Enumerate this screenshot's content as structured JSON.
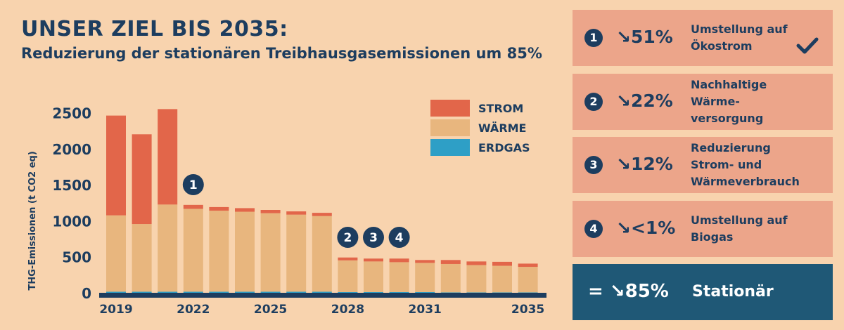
{
  "header": {
    "title": "UNSER ZIEL BIS 2035:",
    "subtitle": "Reduzierung der stationären Treibhausgasemissionen um 85%"
  },
  "colors": {
    "strom": "#e2664a",
    "waerme": "#e8b67e",
    "erdgas": "#2e9fc6",
    "navy": "#1d3d5f"
  },
  "chart_data": {
    "type": "bar",
    "stacked": true,
    "categories": [
      "2019",
      "2020",
      "2021",
      "2022",
      "2023",
      "2024",
      "2025",
      "2026",
      "2027",
      "2028",
      "2029",
      "2030",
      "2031",
      "2032",
      "2033",
      "2034",
      "2035"
    ],
    "x_tick_labels": [
      "2019",
      "2022",
      "2025",
      "2028",
      "2031",
      "2035"
    ],
    "ylabel": "THG-Emissionen (t CO2 eq)",
    "y_ticks": [
      0,
      500,
      1000,
      1500,
      2000,
      2500
    ],
    "ylim": [
      0,
      2650
    ],
    "legend_position": "top-right",
    "series": [
      {
        "name": "ERDGAS",
        "values": [
          15,
          15,
          15,
          15,
          15,
          15,
          15,
          15,
          15,
          10,
          10,
          10,
          10,
          5,
          5,
          5,
          5
        ]
      },
      {
        "name": "WÄRME",
        "values": [
          1060,
          940,
          1210,
          1150,
          1125,
          1110,
          1090,
          1070,
          1050,
          440,
          425,
          415,
          405,
          395,
          380,
          370,
          355
        ]
      },
      {
        "name": "STROM",
        "values": [
          1385,
          1245,
          1325,
          55,
          50,
          50,
          45,
          45,
          45,
          40,
          40,
          50,
          40,
          55,
          50,
          55,
          45
        ]
      }
    ],
    "markers": [
      {
        "label": "1",
        "category": "2022"
      },
      {
        "label": "2",
        "category": "2028"
      },
      {
        "label": "3",
        "category": "2029"
      },
      {
        "label": "4",
        "category": "2030"
      }
    ]
  },
  "measures": [
    {
      "num": "1",
      "pct": "↘51%",
      "lines": [
        "Umstellung auf",
        "Ökostrom"
      ],
      "done": true
    },
    {
      "num": "2",
      "pct": "↘22%",
      "lines": [
        "Nachhaltige",
        "Wärme-",
        "versorgung"
      ],
      "done": false
    },
    {
      "num": "3",
      "pct": "↘12%",
      "lines": [
        "Reduzierung",
        "Strom- und",
        "Wärmeverbrauch"
      ],
      "done": false
    },
    {
      "num": "4",
      "pct": "↘<1%",
      "lines": [
        "Umstellung auf",
        "Biogas"
      ],
      "done": false
    }
  ],
  "total": {
    "pct": "= ↘85%",
    "label": "Stationär"
  }
}
